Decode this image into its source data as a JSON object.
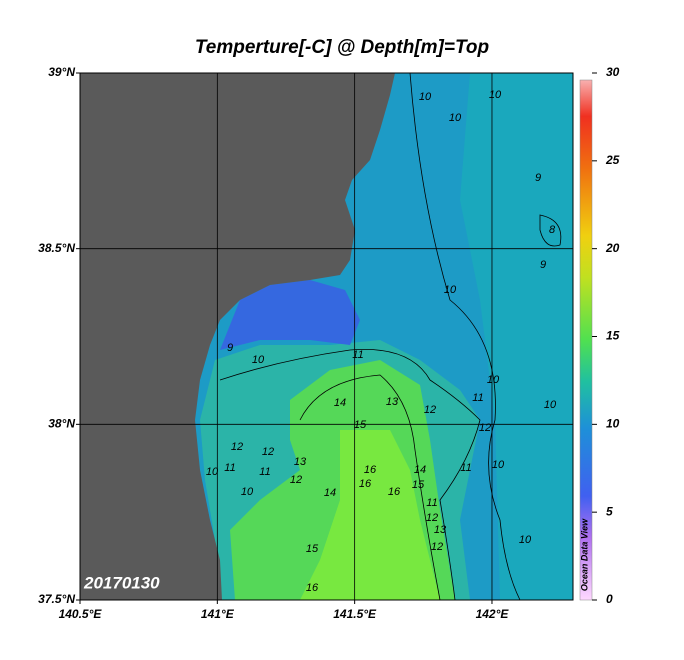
{
  "title": "Temperture[-C] @ Depth[m]=Top",
  "map": {
    "lonlim": [
      140.5,
      142.295
    ],
    "latlim": [
      37.5,
      39
    ],
    "lon_ticks": [
      {
        "value": 140.5,
        "label": "140.5°E"
      },
      {
        "value": 141,
        "label": "141°E"
      },
      {
        "value": 141.5,
        "label": "141.5°E"
      },
      {
        "value": 142,
        "label": "142°E"
      }
    ],
    "lat_ticks": [
      {
        "value": 37.5,
        "label": "37.5°N"
      },
      {
        "value": 38,
        "label": "38°N"
      },
      {
        "value": 38.5,
        "label": "38.5°N"
      },
      {
        "value": 39,
        "label": "39°N"
      }
    ],
    "grid": true,
    "date_label": "20170130",
    "watermark": "Ocean Data View",
    "contour_labels": [
      10,
      10,
      10,
      9,
      8,
      9,
      10,
      9,
      10,
      11,
      10,
      11,
      10,
      14,
      13,
      12,
      15,
      12,
      12,
      12,
      13,
      11,
      11,
      10,
      10,
      12,
      14,
      16,
      16,
      16,
      14,
      15,
      11,
      10,
      11,
      12,
      13,
      12,
      10,
      15,
      16
    ]
  },
  "colorbar": {
    "lim": [
      0,
      30
    ],
    "ticks": [
      0,
      5,
      10,
      15,
      20,
      25,
      30
    ]
  }
}
